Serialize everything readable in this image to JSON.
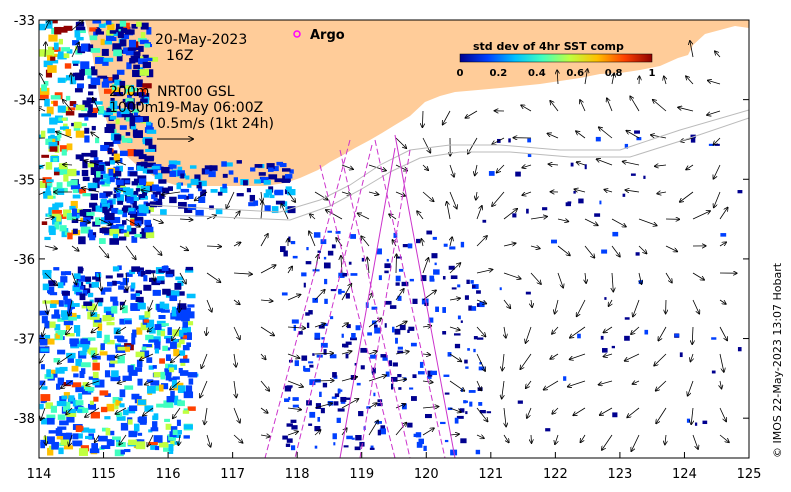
{
  "map": {
    "date_label": "20-May-2023",
    "hour_label": "16Z",
    "contour_label": "200m",
    "contour_label_2": "1000m",
    "product_label": "NRT00 GSL",
    "product_time": "19-May 06:00Z",
    "scale_label": "0.5m/s (1kt 24h)",
    "argo_label": "Argo",
    "credit": "© IMOS 22-May-2023 13:07 Hobart",
    "lon_ticks": [
      "114",
      "115",
      "116",
      "117",
      "118",
      "119",
      "120",
      "121",
      "122",
      "123",
      "124",
      "125"
    ],
    "lat_ticks": [
      "-33",
      "-34",
      "-35",
      "-36",
      "-37",
      "-38"
    ],
    "extent": {
      "lon_min": 114,
      "lon_max": 125,
      "lat_min": -38.5,
      "lat_max": -33
    },
    "colorbar": {
      "title": "std dev of 4hr SST comp",
      "ticks": [
        "0",
        "0.2",
        "0.4",
        "0.6",
        "0.8",
        "1"
      ],
      "colors": [
        "#00008f",
        "#0040ff",
        "#00c0ff",
        "#40ffbf",
        "#c0ff40",
        "#ffc000",
        "#ff4000",
        "#8f0000"
      ]
    },
    "colors": {
      "land": "#ffcc99",
      "argo": "#ff00ff",
      "track": "#cc33cc"
    }
  }
}
